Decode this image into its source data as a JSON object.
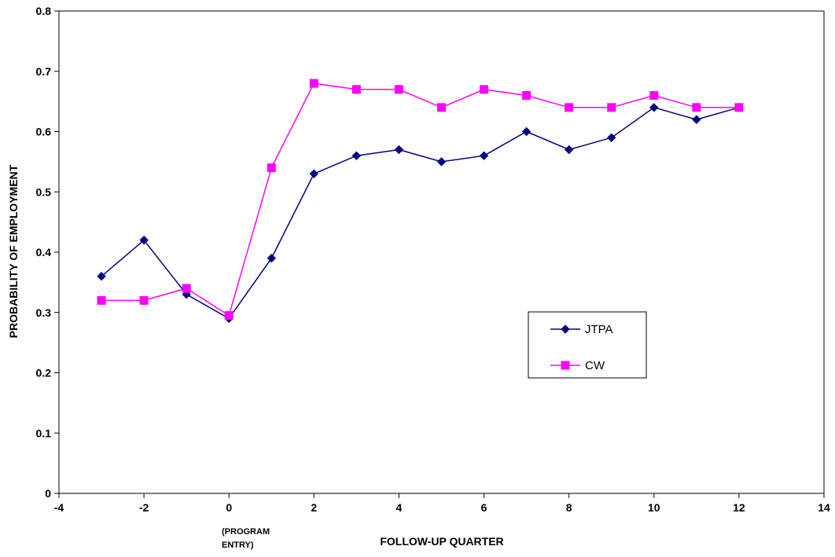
{
  "chart_data": {
    "type": "line",
    "xlabel": "FOLLOW-UP QUARTER",
    "ylabel": "PROBABILITY OF EMPLOYMENT",
    "x_annotation": [
      "(PROGRAM",
      "ENTRY)"
    ],
    "xlim": [
      -4,
      14
    ],
    "ylim": [
      0,
      0.8
    ],
    "x_ticks": [
      "-4",
      "-2",
      "0",
      "2",
      "4",
      "6",
      "8",
      "10",
      "12",
      "14"
    ],
    "y_ticks": [
      "0",
      "0.1",
      "0.2",
      "0.3",
      "0.4",
      "0.5",
      "0.6",
      "0.7",
      "0.8"
    ],
    "grid": false,
    "legend_position": "right",
    "series": [
      {
        "name": "JTPA",
        "color": "#000080",
        "marker": "diamond",
        "x": [
          -3,
          -2,
          -1,
          0,
          1,
          2,
          3,
          4,
          5,
          6,
          7,
          8,
          9,
          10,
          11,
          12
        ],
        "values": [
          0.36,
          0.42,
          0.33,
          0.29,
          0.39,
          0.53,
          0.56,
          0.57,
          0.55,
          0.56,
          0.6,
          0.57,
          0.59,
          0.64,
          0.62,
          0.64
        ]
      },
      {
        "name": "CW",
        "color": "#FF00FF",
        "marker": "square",
        "x": [
          -3,
          -2,
          -1,
          0,
          1,
          2,
          3,
          4,
          5,
          6,
          7,
          8,
          9,
          10,
          11,
          12
        ],
        "values": [
          0.32,
          0.32,
          0.34,
          0.295,
          0.54,
          0.68,
          0.67,
          0.67,
          0.64,
          0.67,
          0.66,
          0.64,
          0.64,
          0.66,
          0.64,
          0.64
        ]
      }
    ]
  }
}
